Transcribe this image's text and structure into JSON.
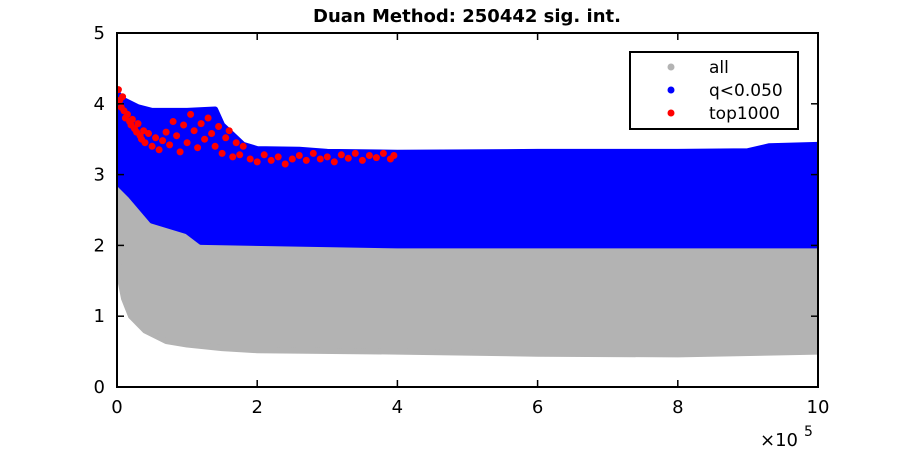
{
  "chart_data": {
    "type": "scatter",
    "title": "Duan Method: 250442 sig. int.",
    "xlabel": "",
    "ylabel": "",
    "xlim": [
      0,
      1000000
    ],
    "ylim": [
      0,
      5
    ],
    "x_multiplier": "×10",
    "x_multiplier_exponent": "5",
    "x_ticks": [
      0,
      200000,
      400000,
      600000,
      800000,
      1000000
    ],
    "x_tick_labels": [
      "0",
      "2",
      "4",
      "6",
      "8",
      "10"
    ],
    "y_ticks": [
      0,
      1,
      2,
      3,
      4,
      5
    ],
    "y_tick_labels": [
      "0",
      "1",
      "2",
      "3",
      "4",
      "5"
    ],
    "grid": false,
    "legend_position": "top-right",
    "series": [
      {
        "name": "all",
        "color": "#b3b3b3",
        "kind": "band",
        "upper": [
          [
            0,
            4.1
          ],
          [
            2000,
            3.9
          ],
          [
            5000,
            3.6
          ],
          [
            10000,
            3.3
          ],
          [
            20000,
            3.0
          ],
          [
            40000,
            2.6
          ],
          [
            70000,
            2.3
          ],
          [
            100000,
            2.15
          ],
          [
            120000,
            2.05
          ],
          [
            400000,
            2.0
          ],
          [
            1000000,
            2.0
          ]
        ],
        "lower": [
          [
            0,
            1.9
          ],
          [
            5000,
            1.5
          ],
          [
            10000,
            1.25
          ],
          [
            20000,
            1.0
          ],
          [
            40000,
            0.8
          ],
          [
            70000,
            0.65
          ],
          [
            100000,
            0.6
          ],
          [
            150000,
            0.55
          ],
          [
            200000,
            0.52
          ],
          [
            400000,
            0.5
          ],
          [
            600000,
            0.47
          ],
          [
            800000,
            0.46
          ],
          [
            1000000,
            0.5
          ]
        ]
      },
      {
        "name": "q<0.050",
        "color": "#0000ff",
        "kind": "band",
        "upper": [
          [
            0,
            4.15
          ],
          [
            10000,
            4.05
          ],
          [
            30000,
            3.95
          ],
          [
            50000,
            3.9
          ],
          [
            100000,
            3.9
          ],
          [
            140000,
            3.92
          ],
          [
            150000,
            3.7
          ],
          [
            180000,
            3.42
          ],
          [
            200000,
            3.36
          ],
          [
            260000,
            3.35
          ],
          [
            300000,
            3.32
          ],
          [
            400000,
            3.31
          ],
          [
            600000,
            3.32
          ],
          [
            800000,
            3.32
          ],
          [
            900000,
            3.33
          ],
          [
            930000,
            3.4
          ],
          [
            1000000,
            3.42
          ]
        ],
        "lower": [
          [
            0,
            2.9
          ],
          [
            20000,
            2.7
          ],
          [
            50000,
            2.35
          ],
          [
            100000,
            2.2
          ],
          [
            120000,
            2.05
          ],
          [
            400000,
            2.0
          ],
          [
            1000000,
            2.0
          ]
        ]
      },
      {
        "name": "top1000",
        "color": "#ff0000",
        "kind": "points",
        "points": [
          [
            2000,
            4.2
          ],
          [
            4000,
            4.05
          ],
          [
            6000,
            3.95
          ],
          [
            8000,
            4.1
          ],
          [
            10000,
            3.9
          ],
          [
            12000,
            3.8
          ],
          [
            15000,
            3.85
          ],
          [
            18000,
            3.75
          ],
          [
            20000,
            3.7
          ],
          [
            22000,
            3.78
          ],
          [
            25000,
            3.65
          ],
          [
            28000,
            3.6
          ],
          [
            30000,
            3.72
          ],
          [
            33000,
            3.55
          ],
          [
            35000,
            3.5
          ],
          [
            38000,
            3.62
          ],
          [
            40000,
            3.45
          ],
          [
            45000,
            3.58
          ],
          [
            50000,
            3.4
          ],
          [
            55000,
            3.52
          ],
          [
            60000,
            3.35
          ],
          [
            65000,
            3.48
          ],
          [
            70000,
            3.6
          ],
          [
            75000,
            3.42
          ],
          [
            80000,
            3.75
          ],
          [
            85000,
            3.55
          ],
          [
            90000,
            3.32
          ],
          [
            95000,
            3.7
          ],
          [
            100000,
            3.45
          ],
          [
            105000,
            3.85
          ],
          [
            110000,
            3.62
          ],
          [
            115000,
            3.38
          ],
          [
            120000,
            3.72
          ],
          [
            125000,
            3.5
          ],
          [
            130000,
            3.8
          ],
          [
            135000,
            3.58
          ],
          [
            140000,
            3.4
          ],
          [
            145000,
            3.68
          ],
          [
            150000,
            3.3
          ],
          [
            155000,
            3.52
          ],
          [
            160000,
            3.62
          ],
          [
            165000,
            3.25
          ],
          [
            170000,
            3.45
          ],
          [
            175000,
            3.28
          ],
          [
            180000,
            3.4
          ],
          [
            190000,
            3.22
          ],
          [
            200000,
            3.18
          ],
          [
            210000,
            3.28
          ],
          [
            220000,
            3.2
          ],
          [
            230000,
            3.25
          ],
          [
            240000,
            3.15
          ],
          [
            250000,
            3.22
          ],
          [
            260000,
            3.27
          ],
          [
            270000,
            3.2
          ],
          [
            280000,
            3.3
          ],
          [
            290000,
            3.22
          ],
          [
            300000,
            3.25
          ],
          [
            310000,
            3.18
          ],
          [
            320000,
            3.28
          ],
          [
            330000,
            3.23
          ],
          [
            340000,
            3.3
          ],
          [
            350000,
            3.2
          ],
          [
            360000,
            3.27
          ],
          [
            370000,
            3.24
          ],
          [
            380000,
            3.3
          ],
          [
            390000,
            3.22
          ],
          [
            395000,
            3.27
          ]
        ]
      }
    ]
  }
}
